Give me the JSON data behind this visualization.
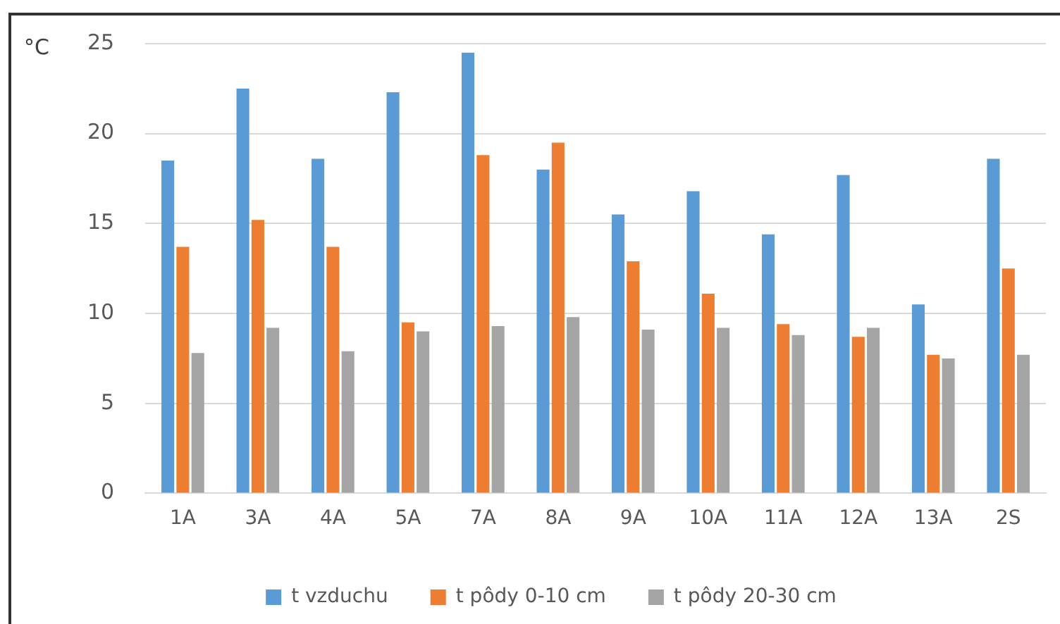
{
  "chart_data": {
    "type": "bar",
    "ylabel": "°C",
    "categories": [
      "1A",
      "3A",
      "4A",
      "5A",
      "7A",
      "8A",
      "9A",
      "10A",
      "11A",
      "12A",
      "13A",
      "2S"
    ],
    "series": [
      {
        "name": "t vzduchu",
        "color": "#5b9bd5",
        "values": [
          18.5,
          22.5,
          18.6,
          22.3,
          24.5,
          18.0,
          15.5,
          16.8,
          14.4,
          17.7,
          10.5,
          18.6
        ]
      },
      {
        "name": "t pôdy 0-10 cm",
        "color": "#ed7d31",
        "values": [
          13.7,
          15.2,
          13.7,
          9.5,
          18.8,
          19.5,
          12.9,
          11.1,
          9.4,
          8.7,
          7.7,
          12.5
        ]
      },
      {
        "name": "t pôdy 20-30 cm",
        "color": "#a5a5a5",
        "values": [
          7.8,
          9.2,
          7.9,
          9.0,
          9.3,
          9.8,
          9.1,
          9.2,
          8.8,
          9.2,
          7.5,
          7.7
        ]
      }
    ],
    "ylim": [
      0,
      25
    ],
    "yticks": [
      0,
      5,
      10,
      15,
      20,
      25
    ],
    "grid": "y",
    "legend": "bottom"
  }
}
